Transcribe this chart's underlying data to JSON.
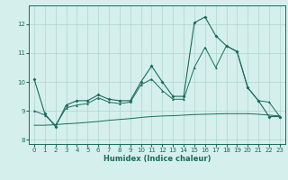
{
  "xlabel": "Humidex (Indice chaleur)",
  "xlim": [
    -0.5,
    23.5
  ],
  "ylim": [
    7.85,
    12.65
  ],
  "yticks": [
    8,
    9,
    10,
    11,
    12
  ],
  "xticks": [
    0,
    1,
    2,
    3,
    4,
    5,
    6,
    7,
    8,
    9,
    10,
    11,
    12,
    13,
    14,
    15,
    16,
    17,
    18,
    19,
    20,
    21,
    22,
    23
  ],
  "bg_color": "#d5f0ec",
  "grid_color": "#aed4cc",
  "line_color": "#1a6b5a",
  "line_jagged_x": [
    0,
    1,
    2,
    3,
    4,
    5,
    6,
    7,
    8,
    9,
    10,
    11,
    12,
    13,
    14,
    15,
    16,
    17,
    18,
    19,
    20,
    21,
    22,
    23
  ],
  "line_jagged_y": [
    10.1,
    8.9,
    8.45,
    9.2,
    9.35,
    9.35,
    9.55,
    9.4,
    9.35,
    9.35,
    10.0,
    10.55,
    10.0,
    9.5,
    9.5,
    12.05,
    12.25,
    11.6,
    11.25,
    11.05,
    9.8,
    9.35,
    8.8,
    8.8
  ],
  "line_tri_x": [
    0,
    1,
    2,
    3,
    4,
    5,
    6,
    7,
    8,
    9,
    10,
    11,
    12,
    13,
    14,
    15,
    16,
    17,
    18,
    19,
    20,
    21,
    22,
    23
  ],
  "line_tri_y": [
    9.0,
    8.85,
    8.5,
    9.1,
    9.2,
    9.25,
    9.45,
    9.3,
    9.25,
    9.3,
    9.9,
    10.1,
    9.7,
    9.4,
    9.4,
    10.5,
    11.2,
    10.5,
    11.25,
    11.05,
    9.8,
    9.35,
    9.3,
    8.8
  ],
  "line_flat_x": [
    0,
    1,
    2,
    3,
    4,
    5,
    6,
    7,
    8,
    9,
    10,
    11,
    12,
    13,
    14,
    15,
    16,
    17,
    18,
    19,
    20,
    21,
    22,
    23
  ],
  "line_flat_y": [
    8.5,
    8.5,
    8.52,
    8.55,
    8.57,
    8.6,
    8.63,
    8.67,
    8.7,
    8.73,
    8.77,
    8.8,
    8.82,
    8.83,
    8.85,
    8.87,
    8.88,
    8.89,
    8.9,
    8.9,
    8.9,
    8.88,
    8.85,
    8.82
  ]
}
